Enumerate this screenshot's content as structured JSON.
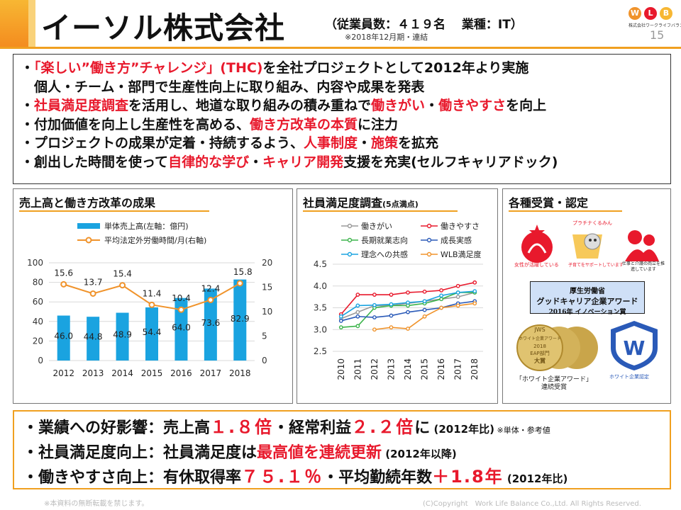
{
  "header": {
    "title": "イーソル株式会社",
    "subtitle": "（従業員数：４１９名　 業種：IT）",
    "note": "※2018年12月期・連結",
    "logo_letters": [
      "W",
      "L",
      "B"
    ],
    "logo_sub": "株式会社ワークライフバランス",
    "page_number": "15"
  },
  "bullets": [
    [
      {
        "t": "・"
      },
      {
        "t": "「楽しい”働き方”チャレンジ」(THC)",
        "red": true
      },
      {
        "t": "を全社プロジェクトとして2012年より実施"
      }
    ],
    [
      {
        "t": "　個人・チーム・部門で生産性向上に取り組み、内容や成果を発表"
      }
    ],
    [
      {
        "t": "・"
      },
      {
        "t": "社員満足度調査",
        "red": true
      },
      {
        "t": "を活用し、地道な取り組みの積み重ねで"
      },
      {
        "t": "働きがい",
        "red": true
      },
      {
        "t": "・"
      },
      {
        "t": "働きやすさ",
        "red": true
      },
      {
        "t": "を向上"
      }
    ],
    [
      {
        "t": "・付加価値を向上し生産性を高める、"
      },
      {
        "t": "働き方改革の本質",
        "red": true
      },
      {
        "t": "に注力"
      }
    ],
    [
      {
        "t": "・プロジェクトの成果が定着・持続するよう、"
      },
      {
        "t": "人事制度",
        "red": true
      },
      {
        "t": "・"
      },
      {
        "t": "施策",
        "red": true
      },
      {
        "t": "を拡充"
      }
    ],
    [
      {
        "t": "・創出した時間を使って"
      },
      {
        "t": "自律的な学び",
        "red": true
      },
      {
        "t": "・"
      },
      {
        "t": "キャリア開発",
        "red": true
      },
      {
        "t": "支援を充実(セルフキャリアドック)"
      }
    ]
  ],
  "panels": {
    "sales_title": "売上高と働き方改革の成果",
    "survey_title": "社員満足度調査",
    "survey_title_small": "(5点満点)",
    "awards_title": "各種受賞・認定"
  },
  "chart_data": [
    {
      "type": "bar",
      "categories": [
        "2012",
        "2013",
        "2014",
        "2015",
        "2016",
        "2017",
        "2018"
      ],
      "series": [
        {
          "name": "単体売上高(左軸：億円)",
          "type": "bar",
          "axis": "left",
          "color": "#1aa3e0",
          "values": [
            46.0,
            44.8,
            48.9,
            54.4,
            64.0,
            73.6,
            82.9
          ],
          "labels": [
            "46.0",
            "44.8",
            "48.9",
            "54.4",
            "64.0",
            "73.6",
            "82.9"
          ]
        },
        {
          "name": "平均法定外労働時間/月(右軸)",
          "type": "line",
          "axis": "right",
          "color": "#f0932b",
          "values": [
            15.6,
            13.7,
            15.4,
            11.4,
            10.4,
            12.4,
            15.8
          ],
          "labels": [
            "15.6",
            "13.7",
            "15.4",
            "11.4",
            "10.4",
            "12.4",
            "15.8"
          ]
        }
      ],
      "y_left": {
        "range": [
          0,
          100
        ],
        "ticks": [
          "0",
          "20",
          "40",
          "60",
          "80",
          "100"
        ]
      },
      "y_right": {
        "range": [
          0,
          20
        ],
        "ticks": [
          "0",
          "5",
          "10",
          "15",
          "20"
        ]
      },
      "grid": true,
      "legend": "top-center"
    },
    {
      "type": "line",
      "categories": [
        "2010",
        "2011",
        "2012",
        "2013",
        "2014",
        "2015",
        "2016",
        "2017",
        "2018"
      ],
      "y": {
        "range": [
          2.5,
          4.5
        ],
        "ticks": [
          "2.5",
          "3.0",
          "3.5",
          "4.0",
          "4.5"
        ]
      },
      "series": [
        {
          "name": "働きがい",
          "color": "#999999",
          "values": [
            3.25,
            3.4,
            3.55,
            3.55,
            3.6,
            3.65,
            3.7,
            3.75,
            3.85
          ]
        },
        {
          "name": "働きやすさ",
          "color": "#e8192c",
          "values": [
            3.35,
            3.8,
            3.8,
            3.8,
            3.85,
            3.87,
            3.9,
            4.0,
            4.08
          ]
        },
        {
          "name": "長期就業志向",
          "color": "#3cb44b",
          "values": [
            3.05,
            3.08,
            3.5,
            3.55,
            3.55,
            3.6,
            3.7,
            3.85,
            3.85
          ]
        },
        {
          "name": "成長実感",
          "color": "#2a5ab8",
          "values": [
            3.2,
            3.3,
            3.28,
            3.32,
            3.4,
            3.45,
            3.5,
            3.6,
            3.65
          ]
        },
        {
          "name": "理念への共感",
          "color": "#1aa3e0",
          "values": [
            3.3,
            3.55,
            3.56,
            3.58,
            3.62,
            3.65,
            3.78,
            3.85,
            3.88
          ]
        },
        {
          "name": "WLB満足度",
          "color": "#f0932b",
          "values": [
            null,
            null,
            3.0,
            3.05,
            3.02,
            3.3,
            3.5,
            3.55,
            3.6
          ]
        }
      ],
      "grid": true,
      "legend": "top"
    }
  ],
  "awards": {
    "caption_small1": "女性が活躍している",
    "badge_small2": "プラチナくるみん",
    "caption_small2": "子育てをサポートしています",
    "caption_small3": "仕事と介護の両立を推進しています",
    "box_line1": "厚生労働省",
    "box_line2": "グッドキャリア企業アワード",
    "box_line3": "2016年 イノベーション賞",
    "medal_top": "JWS",
    "medal_mid": "ホワイト企業アワード",
    "medal_year": "2018",
    "medal_cat": "EAP部門",
    "medal_bottom": "大賞",
    "caption_medal": "「ホワイト企業アワード」\n連続受賞",
    "emblem_letter": "W",
    "emblem_label": "ホワイト企業認定"
  },
  "results": [
    [
      {
        "t": "・業績への好影響：売上高"
      },
      {
        "t": "１.８倍",
        "red": true,
        "big": true
      },
      {
        "t": "・経常利益"
      },
      {
        "t": "２.２倍",
        "red": true,
        "big": true
      },
      {
        "t": "に"
      },
      {
        "t": " (2012年比)",
        "small": true
      },
      {
        "t": " ※単体・参考値",
        "tiny": true
      }
    ],
    [
      {
        "t": "・社員満足度向上：社員満足度は"
      },
      {
        "t": "最高値を連続更新",
        "red": true
      },
      {
        "t": " (2012年以降)",
        "small": true
      }
    ],
    [
      {
        "t": "・働きやすさ向上：有休取得率"
      },
      {
        "t": "７５.１％",
        "red": true,
        "big": true
      },
      {
        "t": "・平均勤続年数"
      },
      {
        "t": "＋1.8年",
        "red": true,
        "big": true
      },
      {
        "t": " (2012年比)",
        "small": true
      }
    ]
  ],
  "footer": {
    "left": "※本資料の無断転載を禁じます。",
    "right": "(C)Copyright　Work Life Balance Co.,Ltd. All Rights Reserved."
  },
  "colors": {
    "accent": "#f0a020",
    "highlight": "#e8192c",
    "bar": "#1aa3e0",
    "overtime_line": "#f0932b"
  }
}
